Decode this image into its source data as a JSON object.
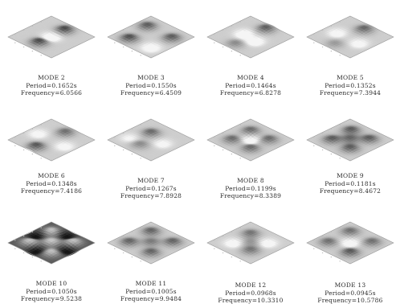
{
  "modes": [
    {
      "name": "MODE 2",
      "line1": "Period=0.1652s",
      "line2": "Frequency=6.0566",
      "shading": {
        "pattern": "stripes",
        "centers": [
          [
            0.5,
            0.2,
            1.0
          ],
          [
            0.5,
            0.78,
            1.0
          ],
          [
            0.5,
            0.5,
            -0.7
          ]
        ],
        "contrast": 0.9
      }
    },
    {
      "name": "MODE 3",
      "line1": "Period=0.1550s",
      "line2": "Frequency=6.4509",
      "shading": {
        "pattern": "blobs",
        "centers": [
          [
            0.22,
            0.3,
            0.9
          ],
          [
            0.78,
            0.3,
            0.9
          ],
          [
            0.3,
            0.8,
            1.0
          ],
          [
            0.75,
            0.75,
            -0.6
          ]
        ],
        "contrast": 0.85
      }
    },
    {
      "name": "MODE 4",
      "line1": "Period=0.1464s",
      "line2": "Frequency=6.8278",
      "shading": {
        "pattern": "stripes",
        "centers": [
          [
            0.5,
            0.15,
            1.0
          ],
          [
            0.35,
            0.5,
            -0.7
          ],
          [
            0.65,
            0.55,
            -0.7
          ],
          [
            0.5,
            0.85,
            0.6
          ]
        ],
        "contrast": 0.75
      }
    },
    {
      "name": "MODE 5",
      "line1": "Period=0.1352s",
      "line2": "Frequency=7.3944",
      "shading": {
        "pattern": "stripes",
        "centers": [
          [
            0.5,
            0.18,
            1.0
          ],
          [
            0.25,
            0.55,
            -0.6
          ],
          [
            0.75,
            0.55,
            -0.6
          ],
          [
            0.5,
            0.85,
            0.5
          ]
        ],
        "contrast": 0.7
      }
    },
    {
      "name": "MODE 6",
      "line1": "Period=0.1348s",
      "line2": "Frequency=7.4186",
      "shading": {
        "pattern": "blobs",
        "centers": [
          [
            0.5,
            0.18,
            0.8
          ],
          [
            0.2,
            0.5,
            -0.5
          ],
          [
            0.8,
            0.5,
            -0.5
          ],
          [
            0.5,
            0.85,
            1.0
          ]
        ],
        "contrast": 0.8
      }
    },
    {
      "name": "MODE 7",
      "line1": "Period=0.1267s",
      "line2": "Frequency=7.8928",
      "shading": {
        "pattern": "blobs",
        "centers": [
          [
            0.35,
            0.35,
            0.9
          ],
          [
            0.72,
            0.45,
            -0.5
          ],
          [
            0.5,
            0.75,
            0.6
          ],
          [
            0.2,
            0.7,
            -0.4
          ]
        ],
        "contrast": 0.75
      }
    },
    {
      "name": "MODE 8",
      "line1": "Period=0.1199s",
      "line2": "Frequency=8.3389",
      "shading": {
        "pattern": "blobs",
        "centers": [
          [
            0.3,
            0.3,
            0.9
          ],
          [
            0.72,
            0.3,
            0.9
          ],
          [
            0.3,
            0.72,
            0.9
          ],
          [
            0.72,
            0.72,
            0.9
          ],
          [
            0.5,
            0.5,
            -0.7
          ]
        ],
        "contrast": 0.75
      }
    },
    {
      "name": "MODE 9",
      "line1": "Period=0.1181s",
      "line2": "Frequency=8.4672",
      "shading": {
        "pattern": "blobs",
        "centers": [
          [
            0.3,
            0.28,
            0.9
          ],
          [
            0.72,
            0.28,
            0.9
          ],
          [
            0.3,
            0.72,
            0.9
          ],
          [
            0.72,
            0.72,
            0.9
          ],
          [
            0.5,
            0.5,
            0.8
          ]
        ],
        "contrast": 0.85
      }
    },
    {
      "name": "MODE 10",
      "line1": "Period=0.1050s",
      "line2": "Frequency=9.5238",
      "shading": {
        "pattern": "checker",
        "centers": [
          [
            0.25,
            0.25,
            1.0
          ],
          [
            0.75,
            0.25,
            1.0
          ],
          [
            0.25,
            0.75,
            1.0
          ],
          [
            0.75,
            0.75,
            1.0
          ],
          [
            0.5,
            0.5,
            1.0
          ],
          [
            0.5,
            0.15,
            -0.8
          ],
          [
            0.15,
            0.5,
            -0.8
          ],
          [
            0.85,
            0.5,
            -0.8
          ],
          [
            0.5,
            0.85,
            -0.8
          ]
        ],
        "contrast": 1.0,
        "dark": true
      }
    },
    {
      "name": "MODE 11",
      "line1": "Period=0.1005s",
      "line2": "Frequency=9.9484",
      "shading": {
        "pattern": "blobs",
        "centers": [
          [
            0.25,
            0.25,
            0.9
          ],
          [
            0.75,
            0.25,
            0.9
          ],
          [
            0.25,
            0.75,
            0.9
          ],
          [
            0.75,
            0.75,
            0.9
          ],
          [
            0.5,
            0.5,
            0.7
          ]
        ],
        "contrast": 0.8
      }
    },
    {
      "name": "MODE 12",
      "line1": "Period=0.0968s",
      "line2": "Frequency=10.3310",
      "shading": {
        "pattern": "blobs",
        "centers": [
          [
            0.3,
            0.3,
            0.8
          ],
          [
            0.7,
            0.3,
            -0.6
          ],
          [
            0.3,
            0.7,
            -0.6
          ],
          [
            0.7,
            0.7,
            0.8
          ],
          [
            0.5,
            0.5,
            0.5
          ]
        ],
        "contrast": 0.75
      }
    },
    {
      "name": "MODE 13",
      "line1": "Period=0.0945s",
      "line2": "Frequency=10.5786",
      "shading": {
        "pattern": "blobs",
        "centers": [
          [
            0.25,
            0.25,
            0.8
          ],
          [
            0.75,
            0.25,
            0.8
          ],
          [
            0.25,
            0.75,
            0.8
          ],
          [
            0.75,
            0.75,
            1.0
          ],
          [
            0.5,
            0.5,
            -0.6
          ]
        ],
        "contrast": 0.8
      }
    }
  ]
}
